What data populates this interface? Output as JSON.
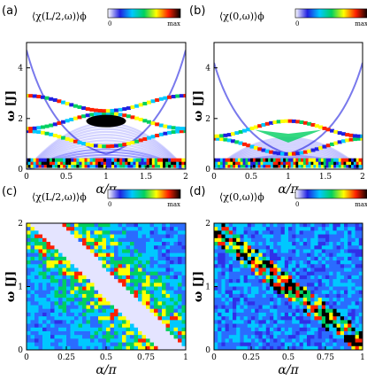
{
  "colormap": {
    "min_label": "0",
    "max_label": "max",
    "stops": [
      "#ffffff",
      "#2020e0",
      "#00c8ff",
      "#00d060",
      "#ffff00",
      "#ff2000",
      "#000000"
    ]
  },
  "chart_data": [
    {
      "type": "heatmap",
      "panel_label": "(a)",
      "quantity": "⟨χ(L/2,ω)⟩ϕ",
      "xlabel": "α/π",
      "ylabel": "ω [J]",
      "xlim": [
        0,
        2
      ],
      "ylim": [
        0,
        5
      ],
      "xticks": [
        "0",
        "0.5",
        "1",
        "1.5",
        "2"
      ],
      "yticks": [
        "0",
        "2",
        "4"
      ]
    },
    {
      "type": "heatmap",
      "panel_label": "(b)",
      "quantity": "⟨χ(0,ω)⟩ϕ",
      "xlabel": "α/π",
      "ylabel": "ω [J]",
      "xlim": [
        0,
        2
      ],
      "ylim": [
        0,
        5
      ],
      "xticks": [
        "0",
        "0.5",
        "1",
        "1.5",
        "2"
      ],
      "yticks": [
        "0",
        "2",
        "4"
      ]
    },
    {
      "type": "heatmap",
      "panel_label": "(c)",
      "quantity": "⟨χ(L/2,ω)⟩ϕ",
      "xlabel": "α/π",
      "ylabel": "ω [J]",
      "xlim": [
        0,
        1
      ],
      "ylim": [
        0,
        2
      ],
      "xticks": [
        "0",
        "0.25",
        "0.5",
        "0.75",
        "1"
      ],
      "yticks": [
        "0",
        "1",
        "2"
      ]
    },
    {
      "type": "heatmap",
      "panel_label": "(d)",
      "quantity": "⟨χ(0,ω)⟩ϕ",
      "xlabel": "α/π",
      "ylabel": "ω [J]",
      "xlim": [
        0,
        1
      ],
      "ylim": [
        0,
        2
      ],
      "xticks": [
        "0",
        "0.25",
        "0.5",
        "0.75",
        "1"
      ],
      "yticks": [
        "0",
        "1",
        "2"
      ]
    }
  ]
}
